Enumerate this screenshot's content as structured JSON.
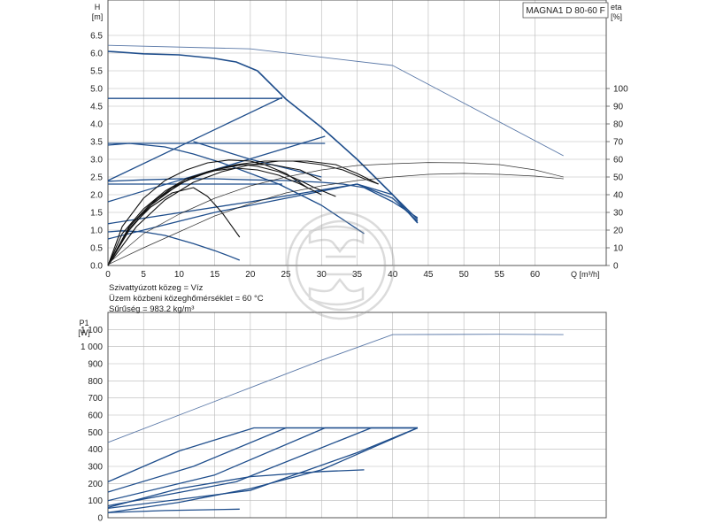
{
  "title_box": "MAGNA1 D 80-60 F",
  "fluid": {
    "line1": "Szivattyúzott közeg = Víz",
    "line2": "Üzem közbeni közeghőmérséklet = 60 °C",
    "line3": "Sűrűség = 983.2 kg/m³"
  },
  "colors": {
    "curve": "#1f4e8c",
    "curve_light": "#5b79a8",
    "black": "#111111",
    "grid": "#b8b8b8"
  },
  "chart_data": [
    {
      "type": "line",
      "xlabel": "Q [m³/h]",
      "ylabel_line1": "H",
      "ylabel_line2": "[m]",
      "y2label_line1": "eta",
      "y2label_line2": "[%]",
      "xlim": [
        0,
        70
      ],
      "ylim": [
        0,
        7.5
      ],
      "y2lim": [
        0,
        150
      ],
      "grid": true,
      "xticks": [
        "0",
        "5",
        "10",
        "15",
        "20",
        "25",
        "30",
        "35",
        "40",
        "45",
        "50",
        "55",
        "60"
      ],
      "yticks": [
        "0.0",
        "0.5",
        "1.0",
        "1.5",
        "2.0",
        "2.5",
        "3.0",
        "3.5",
        "4.0",
        "4.5",
        "5.0",
        "5.5",
        "6.0",
        "6.5"
      ],
      "y2ticks": [
        "0",
        "10",
        "20",
        "30",
        "40",
        "50",
        "60",
        "70",
        "80",
        "90",
        "100"
      ],
      "series": [
        {
          "style": "head-light",
          "x": [
            0,
            20,
            40,
            64
          ],
          "y": [
            6.22,
            6.12,
            5.65,
            3.1
          ]
        },
        {
          "style": "head-max",
          "x": [
            0,
            5,
            10,
            15,
            18,
            21,
            25,
            30,
            35,
            40,
            43.5
          ],
          "y": [
            6.05,
            5.98,
            5.95,
            5.85,
            5.75,
            5.5,
            4.7,
            3.9,
            3.0,
            2.0,
            1.2
          ]
        },
        {
          "style": "head",
          "x": [
            0,
            24.5
          ],
          "y": [
            4.72,
            4.72
          ]
        },
        {
          "style": "head",
          "x": [
            0,
            30.5
          ],
          "y": [
            3.45,
            3.45
          ]
        },
        {
          "style": "head",
          "x": [
            0,
            24.5
          ],
          "y": [
            2.3,
            2.3
          ]
        },
        {
          "style": "head",
          "x": [
            0,
            2,
            5,
            8,
            12,
            15,
            17,
            18.5
          ],
          "y": [
            0.95,
            0.98,
            0.95,
            0.85,
            0.62,
            0.42,
            0.27,
            0.15
          ]
        },
        {
          "style": "head",
          "x": [
            0,
            3,
            8,
            12,
            16,
            20,
            24,
            27,
            30,
            33,
            36
          ],
          "y": [
            3.4,
            3.45,
            3.35,
            3.15,
            2.9,
            2.6,
            2.3,
            2.0,
            1.7,
            1.3,
            0.9
          ]
        },
        {
          "style": "head",
          "x": [
            0,
            5,
            10,
            15,
            20,
            25,
            30,
            33,
            36,
            40,
            43.5
          ],
          "y": [
            2.38,
            2.42,
            2.45,
            2.45,
            2.42,
            2.4,
            2.35,
            2.3,
            2.2,
            1.8,
            1.35
          ]
        },
        {
          "style": "head",
          "x": [
            0,
            24.5
          ],
          "y": [
            2.4,
            4.75
          ]
        },
        {
          "style": "head",
          "x": [
            0,
            30.5
          ],
          "y": [
            1.8,
            3.65
          ]
        },
        {
          "style": "head",
          "x": [
            0,
            20,
            35,
            40,
            43.5
          ],
          "y": [
            1.18,
            1.8,
            2.3,
            2.0,
            1.3
          ]
        },
        {
          "style": "head",
          "x": [
            0,
            15,
            25,
            35,
            40,
            43.5
          ],
          "y": [
            0.75,
            1.5,
            1.9,
            2.3,
            1.9,
            1.25
          ]
        },
        {
          "style": "head",
          "x": [
            12,
            20,
            30
          ],
          "y": [
            3.5,
            3.0,
            2.5
          ]
        },
        {
          "style": "eff",
          "x": [
            0,
            5,
            10,
            15,
            20,
            25,
            30,
            35,
            40,
            45,
            50,
            55,
            60,
            64
          ],
          "y": [
            1,
            18,
            29,
            38,
            45,
            50,
            54,
            56.5,
            57.5,
            58.2,
            58,
            57,
            54,
            50
          ]
        },
        {
          "style": "eff",
          "x": [
            0,
            5,
            10,
            15,
            20,
            25,
            30,
            35,
            40,
            45,
            50,
            55,
            60,
            64
          ],
          "y": [
            0.5,
            10,
            19,
            28,
            35,
            41,
            45,
            48,
            50,
            51.5,
            52,
            51.5,
            50.5,
            49
          ]
        },
        {
          "style": "perf",
          "x": [
            0,
            2,
            5,
            8,
            11,
            14,
            17,
            20,
            22,
            25,
            28
          ],
          "y": [
            0,
            1.1,
            1.9,
            2.4,
            2.7,
            2.9,
            2.98,
            2.95,
            2.85,
            2.6,
            2.2
          ]
        },
        {
          "style": "perf",
          "x": [
            0,
            3,
            6,
            10,
            14,
            18,
            22,
            26,
            30,
            33,
            36,
            38
          ],
          "y": [
            0,
            1.0,
            1.7,
            2.3,
            2.65,
            2.85,
            2.95,
            2.95,
            2.85,
            2.7,
            2.45,
            2.3
          ]
        },
        {
          "style": "perf",
          "x": [
            0,
            4,
            8,
            12,
            16,
            20,
            24,
            28,
            32,
            35,
            38
          ],
          "y": [
            0,
            1.1,
            1.85,
            2.35,
            2.65,
            2.85,
            2.95,
            2.95,
            2.85,
            2.6,
            2.3
          ]
        },
        {
          "style": "perf",
          "x": [
            0,
            3,
            7,
            11,
            15,
            19,
            23,
            27,
            30
          ],
          "y": [
            0,
            1.1,
            1.9,
            2.4,
            2.7,
            2.85,
            2.85,
            2.7,
            2.4
          ]
        },
        {
          "style": "perf",
          "x": [
            0,
            2,
            5,
            8,
            11,
            14,
            17,
            19,
            21,
            24,
            27,
            29,
            32
          ],
          "y": [
            0,
            0.9,
            1.6,
            2.1,
            2.45,
            2.65,
            2.8,
            2.85,
            2.8,
            2.65,
            2.4,
            2.2,
            1.95
          ]
        },
        {
          "style": "perf",
          "x": [
            0,
            3,
            6,
            9,
            12,
            15,
            18,
            21,
            24,
            27,
            30
          ],
          "y": [
            0,
            1.1,
            1.75,
            2.2,
            2.5,
            2.68,
            2.75,
            2.7,
            2.55,
            2.3,
            2.0
          ]
        },
        {
          "style": "perf",
          "x": [
            0,
            3,
            6,
            9,
            12,
            14,
            16,
            18.5
          ],
          "y": [
            0,
            1.05,
            1.65,
            2.05,
            2.2,
            1.95,
            1.5,
            0.8
          ]
        }
      ]
    },
    {
      "type": "line",
      "ylabel_line1": "P1",
      "ylabel_line2": "[W]",
      "xlim": [
        0,
        70
      ],
      "ylim": [
        0,
        1200
      ],
      "grid": true,
      "yticks": [
        "0",
        "100",
        "200",
        "300",
        "400",
        "500",
        "600",
        "700",
        "800",
        "900",
        "1 000",
        "1 100"
      ],
      "series": [
        {
          "style": "power-light",
          "x": [
            0,
            10,
            20,
            30,
            40,
            55,
            64
          ],
          "y": [
            440,
            600,
            760,
            920,
            1070,
            1072,
            1070
          ]
        },
        {
          "style": "power",
          "x": [
            0,
            10,
            20.5,
            43.5
          ],
          "y": [
            210,
            390,
            525,
            525
          ]
        },
        {
          "style": "power",
          "x": [
            0,
            12,
            25,
            43.5
          ],
          "y": [
            150,
            300,
            525,
            525
          ]
        },
        {
          "style": "power",
          "x": [
            0,
            15,
            30.5,
            43.5
          ],
          "y": [
            100,
            250,
            525,
            525
          ]
        },
        {
          "style": "power",
          "x": [
            0,
            18,
            37,
            43.5
          ],
          "y": [
            70,
            210,
            525,
            525
          ]
        },
        {
          "style": "power",
          "x": [
            0,
            20,
            35,
            43.5
          ],
          "y": [
            55,
            160,
            380,
            525
          ]
        },
        {
          "style": "power",
          "x": [
            0,
            10,
            20,
            30,
            36
          ],
          "y": [
            60,
            170,
            240,
            270,
            280
          ]
        },
        {
          "style": "power",
          "x": [
            0,
            10,
            20,
            30,
            43.5
          ],
          "y": [
            30,
            90,
            170,
            280,
            525
          ]
        },
        {
          "style": "power",
          "x": [
            0,
            8,
            18.5
          ],
          "y": [
            30,
            42,
            50
          ]
        }
      ]
    }
  ]
}
